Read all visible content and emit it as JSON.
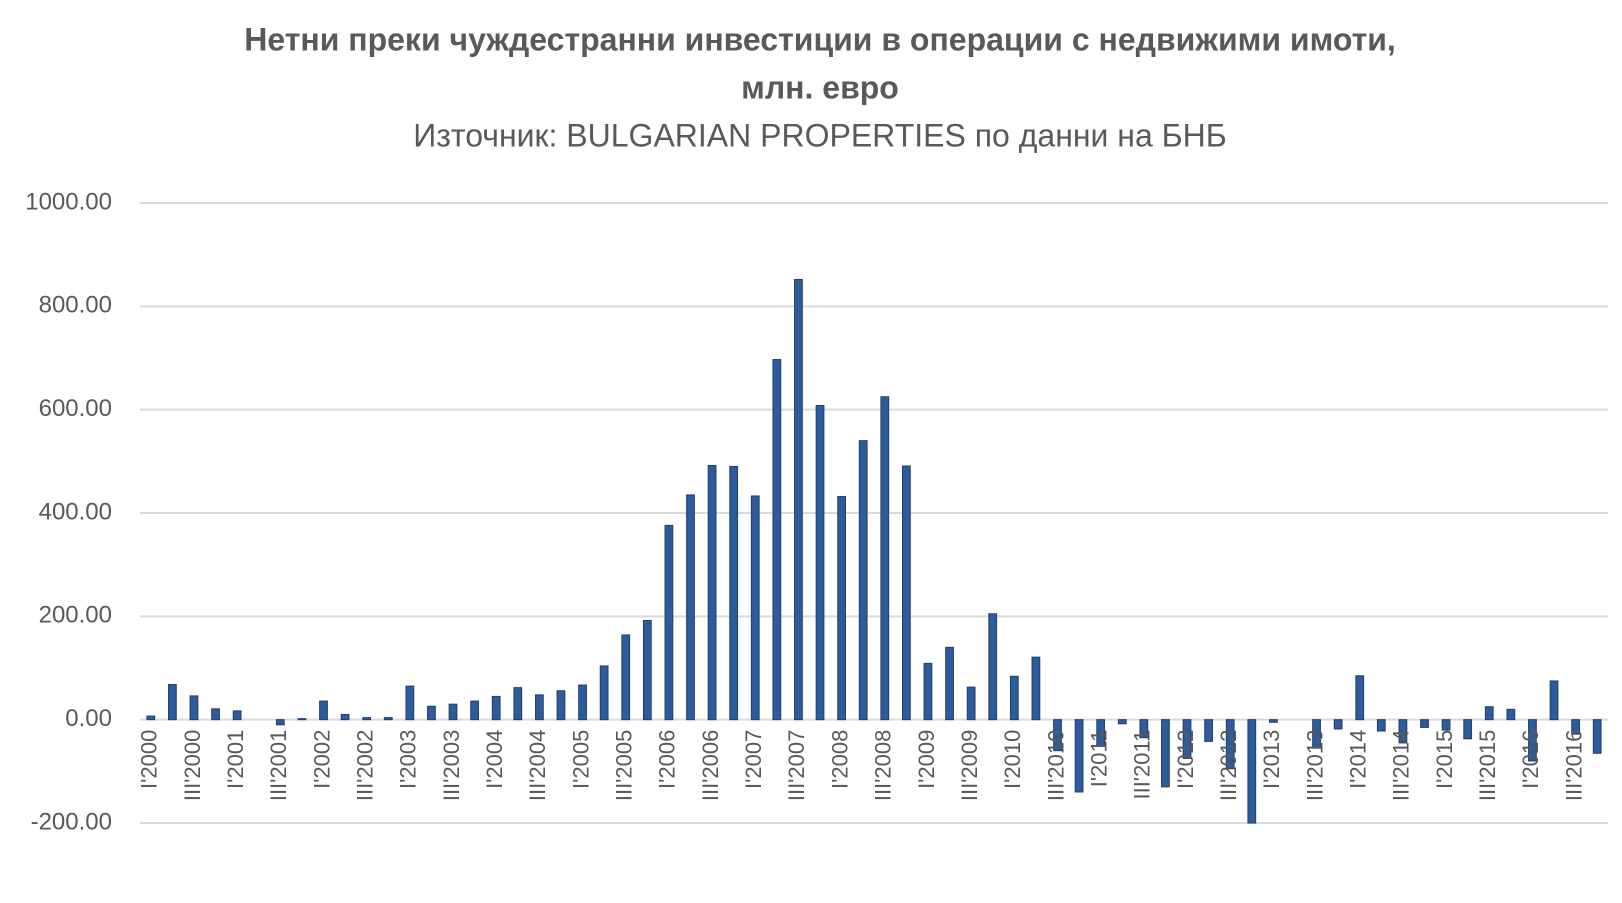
{
  "chart_data": {
    "type": "bar",
    "title": "Нетни преки чуждестранни инвестиции в операции с недвижими имоти,",
    "title_line2": "млн. евро",
    "subtitle": "Източник: BULGARIAN PROPERTIES по данни на БНБ",
    "categories": [
      "I'2000",
      null,
      "III'2000",
      null,
      "I'2001",
      null,
      "III'2001",
      null,
      "I'2002",
      null,
      "III'2002",
      null,
      "I'2003",
      null,
      "III'2003",
      null,
      "I'2004",
      null,
      "III'2004",
      null,
      "I'2005",
      null,
      "III'2005",
      null,
      "I'2006",
      null,
      "III'2006",
      null,
      "I'2007",
      null,
      "III'2007",
      null,
      "I'2008",
      null,
      "III'2008",
      null,
      "I'2009",
      null,
      "III'2009",
      null,
      "I'2010",
      null,
      "III'2010",
      null,
      "I'2011",
      null,
      "III'2011",
      null,
      "I'2012",
      null,
      "III'2012",
      null,
      "I'2013",
      null,
      "III'2013",
      null,
      "I'2014",
      null,
      "III'2014",
      null,
      "I'2015",
      null,
      "III'2015",
      null,
      "I'2016",
      null,
      "III'2016",
      null
    ],
    "values": [
      7,
      68,
      46,
      21,
      17,
      0,
      -10,
      2,
      36,
      10,
      4,
      4,
      65,
      26,
      30,
      36,
      45,
      62,
      48,
      56,
      67,
      104,
      164,
      192,
      376,
      435,
      492,
      490,
      433,
      697,
      852,
      608,
      432,
      540,
      625,
      491,
      109,
      140,
      63,
      205,
      84,
      121,
      -60,
      -140,
      -50,
      -8,
      -35,
      -130,
      -75,
      -42,
      -95,
      -200,
      -5,
      0,
      -55,
      -18,
      85,
      -22,
      -45,
      -15,
      -20,
      -37,
      25,
      20,
      -80,
      75,
      -28,
      -65
    ],
    "color": "#2e5b9a",
    "ylim": [
      -200,
      1000
    ],
    "yticks": [
      {
        "value": -200,
        "label": "-200.00"
      },
      {
        "value": 0,
        "label": "0.00"
      },
      {
        "value": 200,
        "label": "200.00"
      },
      {
        "value": 400,
        "label": "400.00"
      },
      {
        "value": 600,
        "label": "600.00"
      },
      {
        "value": 800,
        "label": "800.00"
      },
      {
        "value": 1000,
        "label": "1000.00"
      }
    ],
    "grid": true
  }
}
